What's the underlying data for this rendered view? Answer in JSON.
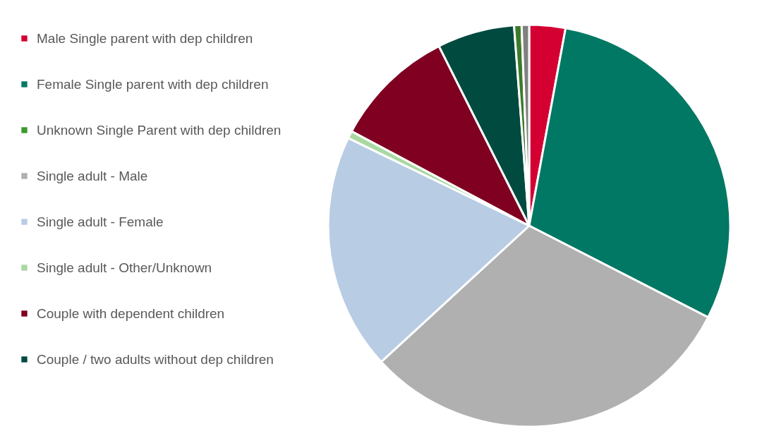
{
  "chart_data": {
    "type": "pie",
    "categories": [
      "Male Single parent with dep children",
      "Female Single parent with dep children",
      "Unknown Single Parent with dep children",
      "Single adult  -  Male",
      "Single adult  - Female",
      "Single adult  - Other/Unknown",
      "Couple with dependent children",
      "Couple / two adults without dep children",
      null,
      null
    ],
    "values": [
      2.9,
      29.6,
      null,
      30.6,
      19,
      0.6,
      9.8,
      6.2,
      0.6,
      0.6
    ],
    "colors": [
      "#d50032",
      "#007864",
      "#3a9a2e",
      "#b0b0b0",
      "#b8cce4",
      "#a9d8a0",
      "#7f0020",
      "#004a3f",
      "#3c7a2a",
      "#808080"
    ],
    "legend": "left"
  }
}
